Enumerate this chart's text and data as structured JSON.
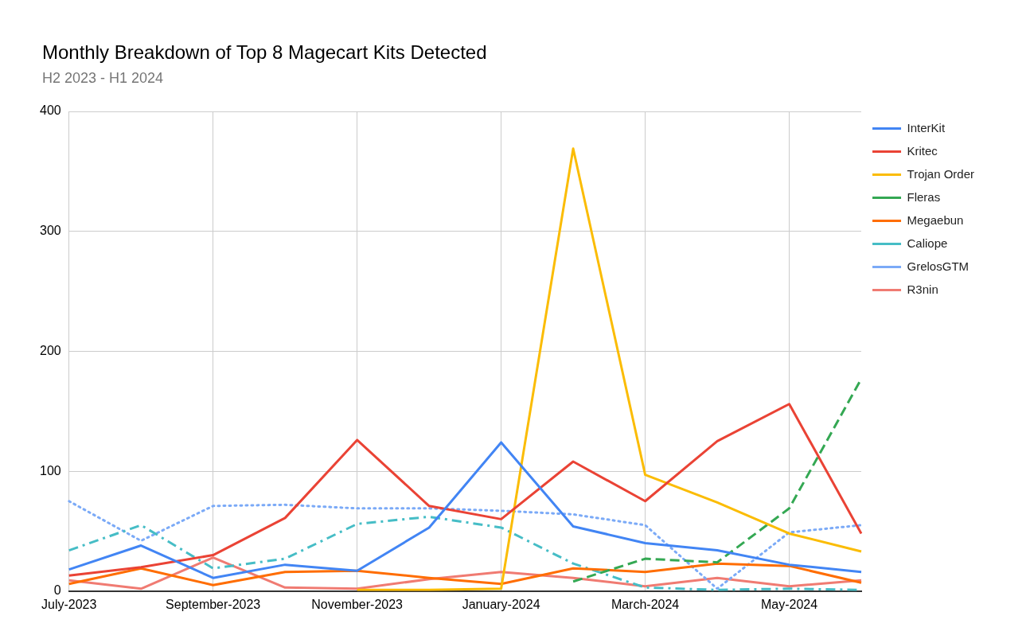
{
  "chart_data": {
    "type": "line",
    "title": "Monthly Breakdown of Top 8 Magecart Kits Detected",
    "subtitle": "H2 2023 - H1 2024",
    "categories": [
      "July-2023",
      null,
      "September-2023",
      null,
      "November-2023",
      null,
      "January-2024",
      null,
      "March-2024",
      null,
      "May-2024",
      null
    ],
    "series": [
      {
        "name": "InterKit",
        "color": "#4285f4",
        "line_style": "solid",
        "values": [
          18,
          38,
          11,
          22,
          17,
          53,
          124,
          54,
          40,
          34,
          22,
          16
        ]
      },
      {
        "name": "Kritec",
        "color": "#ea4335",
        "line_style": "solid",
        "values": [
          13,
          20,
          30,
          61,
          126,
          71,
          60,
          108,
          75,
          125,
          156,
          48
        ]
      },
      {
        "name": "Trojan Order",
        "color": "#fbbc04",
        "line_style": "solid",
        "values": [
          null,
          null,
          null,
          null,
          1,
          1,
          2,
          369,
          97,
          74,
          48,
          33
        ]
      },
      {
        "name": "Fleras",
        "color": "#34a853",
        "line_style": "dashed",
        "values": [
          null,
          null,
          null,
          null,
          null,
          null,
          null,
          8,
          27,
          24,
          69,
          177
        ]
      },
      {
        "name": "Megaebun",
        "color": "#ff6d01",
        "line_style": "solid",
        "values": [
          6,
          19,
          5,
          16,
          17,
          11,
          6,
          19,
          16,
          23,
          21,
          7
        ]
      },
      {
        "name": "Caliope",
        "color": "#46bdc6",
        "line_style": "dashdot",
        "values": [
          34,
          55,
          19,
          27,
          56,
          62,
          53,
          23,
          3,
          1,
          2,
          1
        ]
      },
      {
        "name": "GrelosGTM",
        "color": "#7baaf7",
        "line_style": "dotted",
        "values": [
          75,
          42,
          71,
          72,
          69,
          69,
          67,
          64,
          55,
          2,
          49,
          55
        ]
      },
      {
        "name": "R3nin",
        "color": "#f07b72",
        "line_style": "solid",
        "values": [
          9,
          2,
          28,
          3,
          2,
          10,
          16,
          11,
          4,
          11,
          4,
          9
        ]
      }
    ],
    "ylim": [
      0,
      400
    ],
    "yticks": [
      0,
      100,
      200,
      300,
      400
    ],
    "grid": true,
    "legend": "right",
    "marker": "none"
  }
}
